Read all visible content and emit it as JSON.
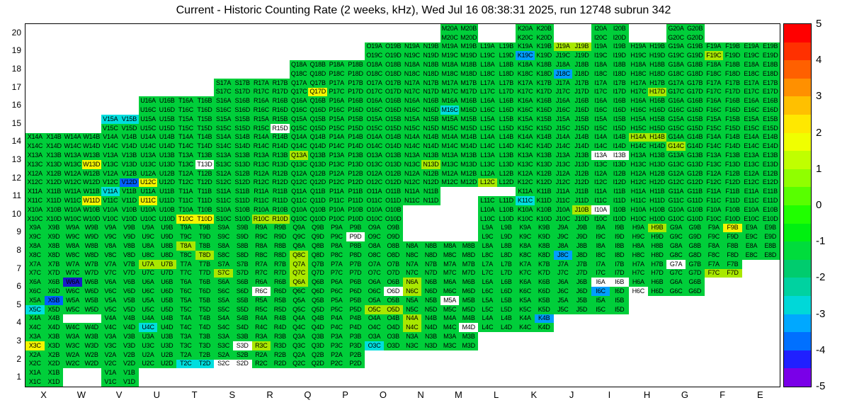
{
  "chart_data": {
    "type": "heatmap",
    "title": "Current - Historic Counting Rate (2 weeks, kHz), Wed Jul 16 08:38:31 2025, run 12748 subrun 342",
    "xlabel": "",
    "ylabel": "",
    "legend_position": "right-colorbar",
    "grid": false,
    "x_categories": [
      "X",
      "W",
      "V",
      "U",
      "T",
      "S",
      "R",
      "Q",
      "P",
      "O",
      "N",
      "M",
      "L",
      "K",
      "J",
      "I",
      "H",
      "G",
      "F",
      "E"
    ],
    "y_categories": [
      20,
      19,
      18,
      17,
      16,
      15,
      14,
      13,
      12,
      11,
      10,
      9,
      8,
      7,
      6,
      5,
      4,
      3,
      2,
      1
    ],
    "sub_cells": [
      "A",
      "B",
      "C",
      "D"
    ],
    "value_range": [
      -5,
      5
    ],
    "default_value": 0,
    "row_columns": {
      "1": [
        "X",
        "V"
      ],
      "2": [
        "X",
        "W",
        "V",
        "U",
        "T",
        "S",
        "R",
        "Q",
        "P"
      ],
      "3": [
        "X",
        "W",
        "V",
        "U",
        "T",
        "S",
        "R",
        "Q",
        "P",
        "O",
        "N",
        "M"
      ],
      "4": [
        "X",
        "W",
        "V",
        "U",
        "T",
        "S",
        "R",
        "Q",
        "P",
        "O",
        "N",
        "M",
        "L",
        "K"
      ],
      "5": [
        "X",
        "W",
        "V",
        "U",
        "T",
        "S",
        "R",
        "Q",
        "P",
        "O",
        "N",
        "M",
        "L",
        "K",
        "J",
        "I"
      ],
      "6": [
        "X",
        "W",
        "V",
        "U",
        "T",
        "S",
        "R",
        "Q",
        "P",
        "O",
        "N",
        "M",
        "L",
        "K",
        "J",
        "I",
        "H",
        "G"
      ],
      "7": [
        "X",
        "W",
        "V",
        "U",
        "T",
        "S",
        "R",
        "Q",
        "P",
        "O",
        "N",
        "M",
        "L",
        "K",
        "J",
        "I",
        "H",
        "G",
        "F"
      ],
      "8": [
        "X",
        "W",
        "V",
        "U",
        "T",
        "S",
        "R",
        "Q",
        "P",
        "O",
        "N",
        "M",
        "L",
        "K",
        "J",
        "I",
        "H",
        "G",
        "F",
        "E"
      ],
      "9": [
        "X",
        "W",
        "V",
        "U",
        "T",
        "S",
        "R",
        "Q",
        "P",
        "O",
        "L",
        "K",
        "J",
        "I",
        "H",
        "G",
        "F",
        "E"
      ],
      "10": [
        "X",
        "W",
        "V",
        "U",
        "T",
        "S",
        "R",
        "Q",
        "P",
        "O",
        "L",
        "K",
        "J",
        "I",
        "H",
        "G",
        "F",
        "E"
      ],
      "11": [
        "X",
        "W",
        "V",
        "U",
        "T",
        "S",
        "R",
        "Q",
        "P",
        "O",
        "N",
        "L",
        "K",
        "J",
        "I",
        "H",
        "G",
        "F",
        "E"
      ],
      "12": [
        "X",
        "W",
        "V",
        "U",
        "T",
        "S",
        "R",
        "Q",
        "P",
        "O",
        "N",
        "M",
        "L",
        "K",
        "J",
        "I",
        "H",
        "G",
        "F",
        "E"
      ],
      "13": [
        "X",
        "W",
        "V",
        "U",
        "T",
        "S",
        "R",
        "Q",
        "P",
        "O",
        "N",
        "M",
        "L",
        "K",
        "J",
        "I",
        "H",
        "G",
        "F",
        "E"
      ],
      "14": [
        "X",
        "W",
        "V",
        "U",
        "T",
        "S",
        "R",
        "Q",
        "P",
        "O",
        "N",
        "M",
        "L",
        "K",
        "J",
        "I",
        "H",
        "G",
        "F",
        "E"
      ],
      "15": [
        "V",
        "U",
        "T",
        "S",
        "R",
        "Q",
        "P",
        "O",
        "N",
        "M",
        "L",
        "K",
        "J",
        "I",
        "H",
        "G",
        "F",
        "E"
      ],
      "16": [
        "U",
        "T",
        "S",
        "R",
        "Q",
        "P",
        "O",
        "N",
        "M",
        "L",
        "K",
        "J",
        "I",
        "H",
        "G",
        "F",
        "E"
      ],
      "17": [
        "S",
        "R",
        "Q",
        "P",
        "O",
        "N",
        "M",
        "L",
        "K",
        "J",
        "I",
        "H",
        "G",
        "F",
        "E"
      ],
      "18": [
        "Q",
        "P",
        "O",
        "N",
        "M",
        "L",
        "K",
        "J",
        "I",
        "H",
        "G",
        "F",
        "E"
      ],
      "19": [
        "O",
        "N",
        "M",
        "L",
        "K",
        "J",
        "I",
        "H",
        "G",
        "F",
        "E"
      ],
      "20": [
        "M",
        "K",
        "I",
        "G"
      ]
    },
    "anomaly_values": {
      "V15A": -2,
      "V15B": -2,
      "M16C": -2,
      "V11A": -2,
      "K11C": -2,
      "U4C": -2,
      "X5C": -2,
      "O3C": -2,
      "T2C": -2,
      "T2D": -2,
      "J18C": -2.5,
      "K19C": -2.5,
      "I6C": -2.5,
      "J8C": -2.5,
      "K4B": -2.5,
      "V12D": -3,
      "X5B": -3,
      "W6A": -4,
      "Q17D": 2,
      "W13D": 2,
      "W11D": 2,
      "U11C": 2,
      "U12C": 2,
      "T10C": 2,
      "T10D": 2,
      "F9B": 2,
      "X3C": 2,
      "J19A": 1.5,
      "J19B": 1.5,
      "F19C": 1.5,
      "H17D": 1.5,
      "Q13A": 1.5,
      "N13D": 1.5,
      "H14A": 1.5,
      "H14B": 1.5,
      "G14C": 1.5,
      "L12C": 1.5,
      "R10C": 1.5,
      "R10D": 1.5,
      "J10B": 1.5,
      "H9B": 1.5,
      "Q8C": 1.5,
      "T8A": 1.5,
      "T8D": 1.5,
      "U7A": 1.5,
      "U7B": 1.5,
      "S7C": 1.5,
      "Q7A": 1.5,
      "Q7C": 1.5,
      "F7C": 1.5,
      "F7D": 1.5,
      "N6A": 1.5,
      "N6C": 1.5,
      "Q6A": 1.5,
      "O5C": 1.5,
      "O5D": 1.5,
      "N4A": 1.5,
      "N4C": 1.5,
      "R3C": 1.5
    },
    "no_data_labeled": [
      "R15D",
      "T13D",
      "I13A",
      "I13B",
      "I10A",
      "P9D",
      "G7A",
      "R6C",
      "O6D",
      "I6A",
      "I6B",
      "H6C",
      "M5A",
      "M4D",
      "S3D",
      "S2C",
      "S2D"
    ],
    "no_data_blank_half": [
      "L11A",
      "L11B",
      "W4A",
      "W4B"
    ]
  },
  "value_colors": {
    "2": "#F5F500",
    "1.5": "#A9E800",
    "0": "#00CE3A",
    "-2": "#00DEDE",
    "-2.5": "#009EFF",
    "-3": "#0060FF",
    "-4": "#1A1AC8"
  },
  "colorbar": {
    "min": -5,
    "max": 5,
    "ticks": [
      5,
      4,
      3,
      2,
      1,
      0,
      -1,
      -2,
      -3,
      -4,
      -5
    ],
    "colors": [
      "#FF0000",
      "#FF3000",
      "#FF6000",
      "#FF9000",
      "#FFC000",
      "#FFE800",
      "#F0FF00",
      "#C0FF00",
      "#90FF00",
      "#58FF00",
      "#20FF00",
      "#00F010",
      "#00DC3C",
      "#00CC6E",
      "#00D2A0",
      "#00D8D8",
      "#00A8FF",
      "#0070FF",
      "#2020FF",
      "#7A00E8"
    ]
  }
}
